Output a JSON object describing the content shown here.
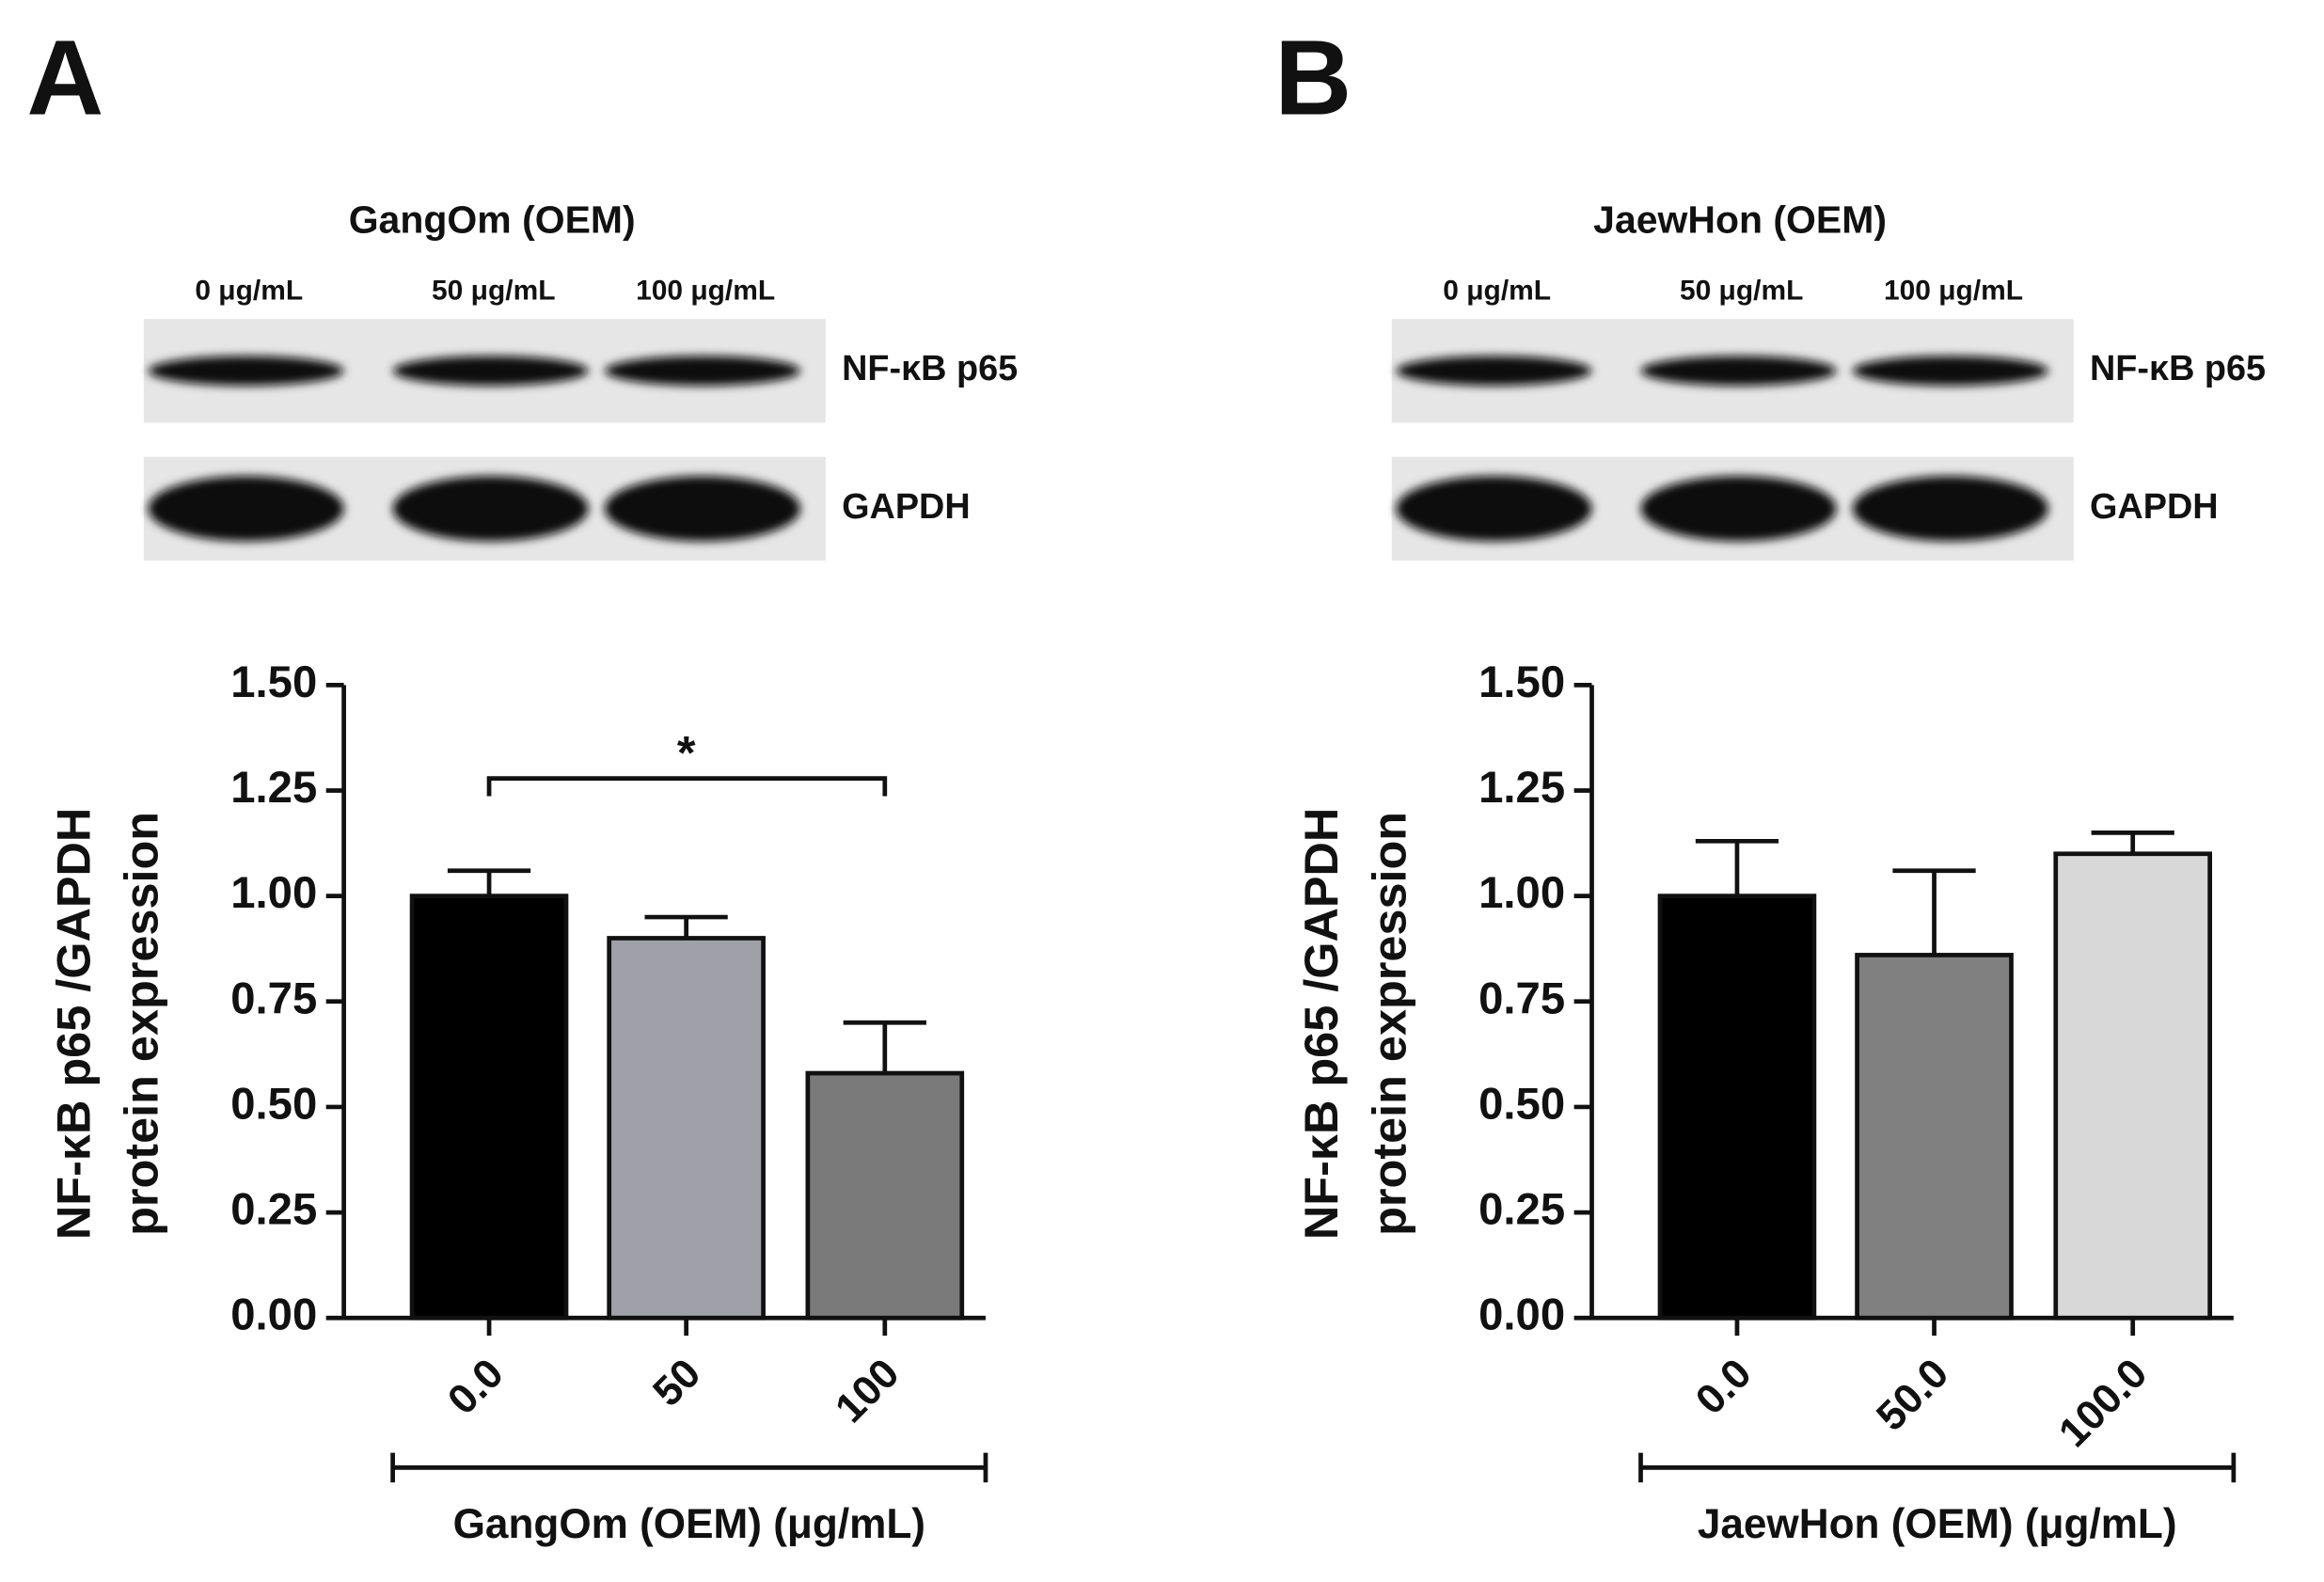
{
  "chart_data": [
    {
      "type": "bar",
      "panel_label": "A",
      "blot_title": "GangOm (OEM)",
      "lanes": [
        "0 μg/mL",
        "50 μg/mL",
        "100 μg/mL"
      ],
      "bands": [
        "NF-κB p65",
        "GAPDH"
      ],
      "categories": [
        "0.0",
        "50",
        "100"
      ],
      "values": [
        1.0,
        0.9,
        0.58
      ],
      "errors": [
        0.06,
        0.05,
        0.12
      ],
      "colors": [
        "#000000",
        "#a0a0a8",
        "#7a7a7a"
      ],
      "ylim": [
        0,
        1.5
      ],
      "yticks": [
        {
          "value": 0,
          "label": "0.00"
        },
        {
          "value": 0.25,
          "label": "0.25"
        },
        {
          "value": 0.5,
          "label": "0.50"
        },
        {
          "value": 0.75,
          "label": "0.75"
        },
        {
          "value": 1,
          "label": "1.00"
        },
        {
          "value": 1.25,
          "label": "1.25"
        },
        {
          "value": 1.5,
          "label": "1.50"
        }
      ],
      "ylabel": [
        "NF-κB p65 /GAPDH",
        "protein expression"
      ],
      "xlabel": "GangOm (OEM) (μg/mL)",
      "annotation": "*"
    },
    {
      "type": "bar",
      "panel_label": "B",
      "blot_title": "JaewHon (OEM)",
      "lanes": [
        "0 μg/mL",
        "50 μg/mL",
        "100 μg/mL"
      ],
      "bands": [
        "NF-κB p65",
        "GAPDH"
      ],
      "categories": [
        "0.0",
        "50.0",
        "100.0"
      ],
      "values": [
        1.0,
        0.86,
        1.1
      ],
      "errors": [
        0.13,
        0.2,
        0.05
      ],
      "colors": [
        "#000000",
        "#808080",
        "#d8d8d8"
      ],
      "ylim": [
        0,
        1.5
      ],
      "yticks": [
        {
          "value": 0,
          "label": "0.00"
        },
        {
          "value": 0.25,
          "label": "0.25"
        },
        {
          "value": 0.5,
          "label": "0.50"
        },
        {
          "value": 0.75,
          "label": "0.75"
        },
        {
          "value": 1,
          "label": "1.00"
        },
        {
          "value": 1.25,
          "label": "1.25"
        },
        {
          "value": 1.5,
          "label": "1.50"
        }
      ],
      "ylabel": [
        "NF-κB p65 /GAPDH",
        "protein expression"
      ],
      "xlabel": "JaewHon (OEM) (μg/mL)"
    }
  ]
}
